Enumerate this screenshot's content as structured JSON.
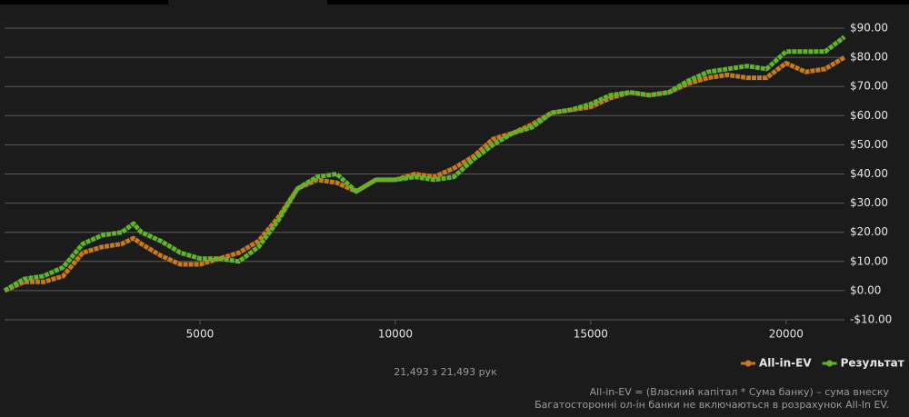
{
  "chart_data": {
    "type": "line",
    "x": [
      0,
      500,
      1000,
      1500,
      2000,
      2500,
      3000,
      3300,
      3500,
      4000,
      4500,
      5000,
      5500,
      6000,
      6500,
      7000,
      7500,
      8000,
      8500,
      9000,
      9500,
      10000,
      10500,
      11000,
      11500,
      12000,
      12500,
      13000,
      13500,
      14000,
      14500,
      15000,
      15500,
      16000,
      16500,
      17000,
      17500,
      18000,
      18500,
      19000,
      19500,
      20000,
      20500,
      21000,
      21493
    ],
    "series": [
      {
        "name": "All-in-EV",
        "color": "#c8791e",
        "values": [
          0,
          3,
          3,
          5,
          13,
          15,
          16,
          18,
          16,
          12,
          9,
          9,
          11,
          13,
          17,
          25,
          35,
          38,
          37,
          34,
          38,
          38,
          40,
          39,
          42,
          46,
          52,
          54,
          57,
          61,
          62,
          63,
          66,
          68,
          67,
          68,
          71,
          73,
          74,
          73,
          73,
          78,
          75,
          76,
          80
        ]
      },
      {
        "name": "Результат",
        "color": "#5fb42a",
        "values": [
          0,
          4,
          5,
          8,
          16,
          19,
          20,
          23,
          20,
          17,
          13,
          11,
          11,
          10,
          15,
          24,
          35,
          39,
          40,
          34,
          38,
          38,
          39,
          38,
          39,
          45,
          50,
          54,
          56,
          61,
          62,
          64,
          67,
          68,
          67,
          68,
          72,
          75,
          76,
          77,
          76,
          82,
          82,
          82,
          87
        ]
      }
    ],
    "xlim": [
      0,
      21493
    ],
    "xticks": [
      5000,
      10000,
      15000,
      20000
    ],
    "ylim": [
      -10,
      90
    ],
    "yticks": [
      {
        "value": -10,
        "label": "-$10.00"
      },
      {
        "value": 0,
        "label": "$0.00"
      },
      {
        "value": 10,
        "label": "$10.00"
      },
      {
        "value": 20,
        "label": "$20.00"
      },
      {
        "value": 30,
        "label": "$30.00"
      },
      {
        "value": 40,
        "label": "$40.00"
      },
      {
        "value": 50,
        "label": "$50.00"
      },
      {
        "value": 60,
        "label": "$60.00"
      },
      {
        "value": 70,
        "label": "$70.00"
      },
      {
        "value": 80,
        "label": "$80.00"
      },
      {
        "value": 90,
        "label": "$90.00"
      }
    ],
    "grid": true,
    "legend": "bottom-right",
    "hand_count": "21,493 з 21,493 рук",
    "notes": [
      "All-in-EV = (Власний капітал * Сума банку) – сума внеску",
      "Багатосторонні ол-ін банки не включаються в розрахунок All-In EV."
    ]
  }
}
